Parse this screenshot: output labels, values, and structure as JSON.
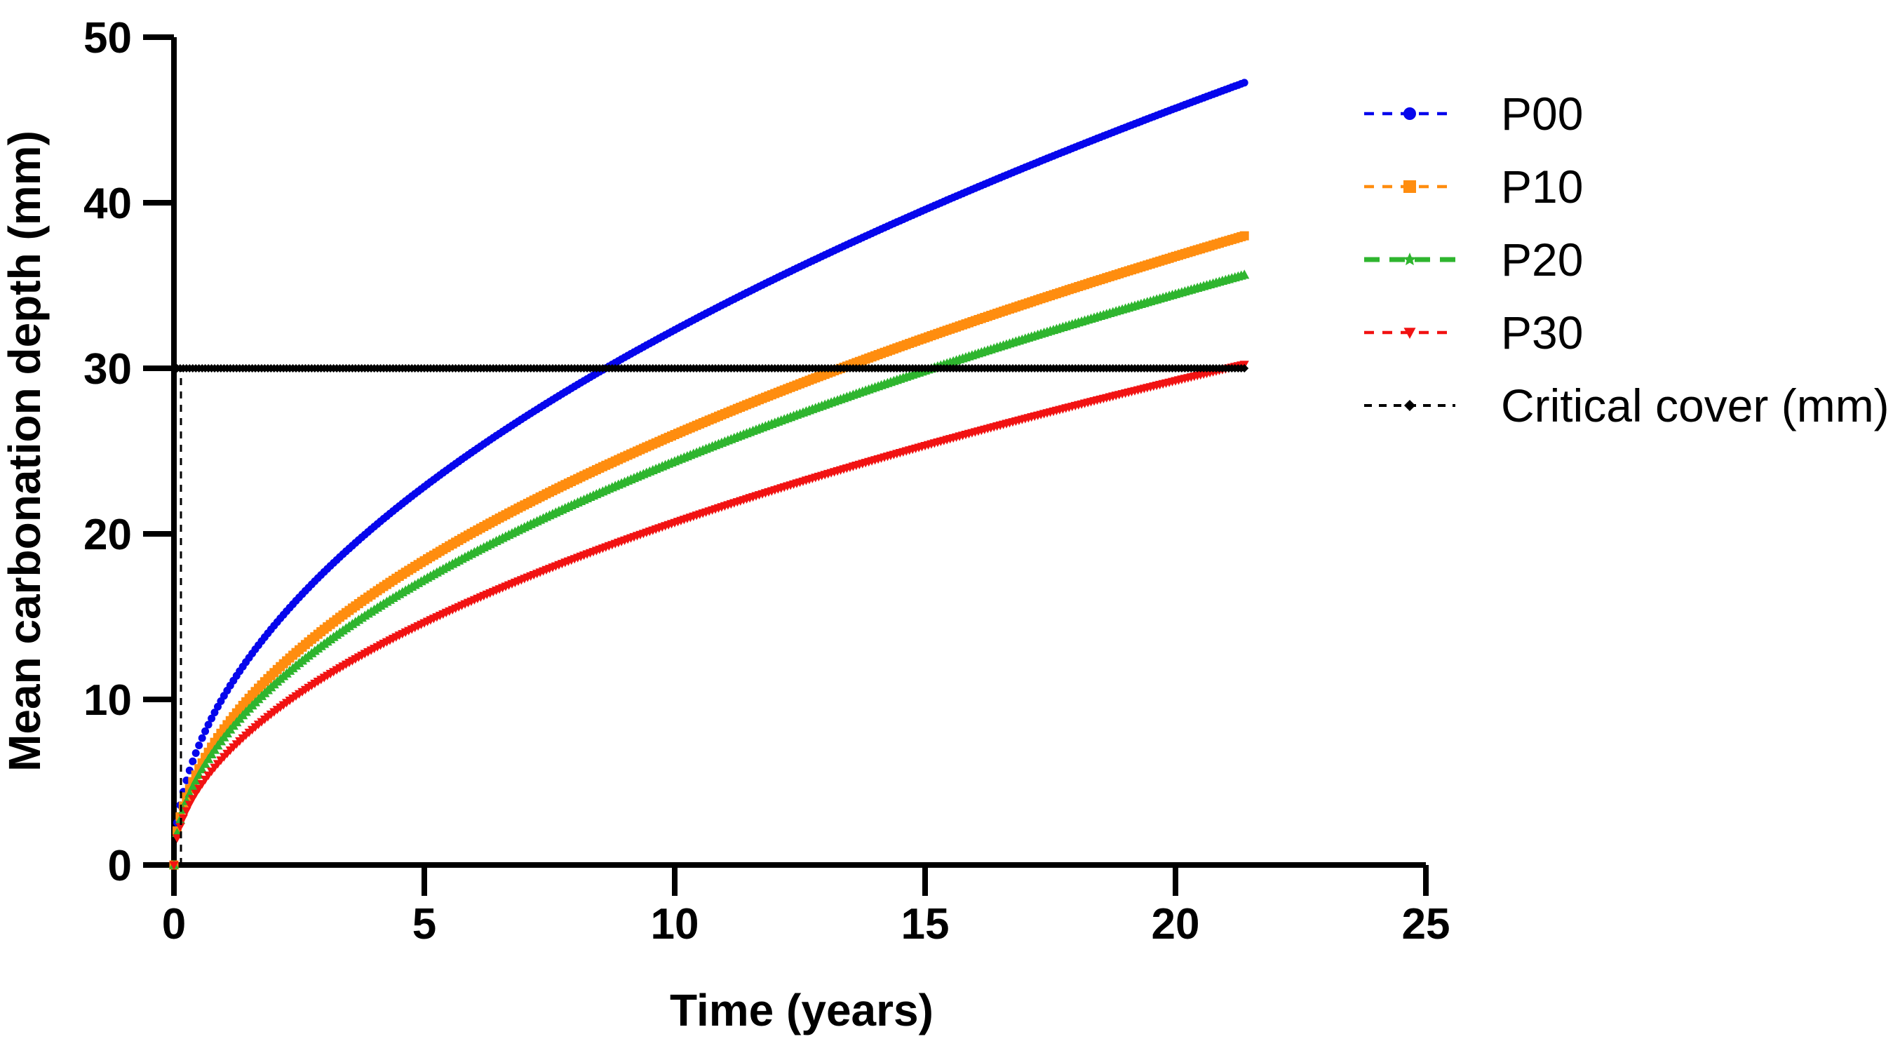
{
  "chart_data": {
    "type": "line",
    "title": "",
    "xlabel": "Time (years)",
    "ylabel": "Mean carbonation depth (mm)",
    "xlim": [
      0,
      25
    ],
    "ylim": [
      0,
      50
    ],
    "x_ticks": [
      0,
      5,
      10,
      15,
      20,
      25
    ],
    "y_ticks": [
      0,
      10,
      20,
      30,
      40,
      50
    ],
    "grid": false,
    "legend_position": "right",
    "axis_color": "#000000",
    "series": [
      {
        "name": "P00",
        "color": "#0606ec",
        "plot_marker": "circle",
        "legend_marker": "circle",
        "marker_size": 5.5,
        "legend_marker_size": 9,
        "legend_dash": "14 12",
        "legend_line_width": 4.5,
        "sqrt_coefficient": 10.22,
        "t_end": 21.4,
        "points": [
          [
            0,
            0
          ],
          [
            1,
            10.2
          ],
          [
            2,
            14.5
          ],
          [
            3,
            17.7
          ],
          [
            4,
            20.4
          ],
          [
            5,
            22.9
          ],
          [
            6,
            25.0
          ],
          [
            7,
            27.0
          ],
          [
            8,
            28.9
          ],
          [
            9,
            30.7
          ],
          [
            10,
            32.3
          ],
          [
            11,
            33.9
          ],
          [
            12,
            35.4
          ],
          [
            13,
            36.9
          ],
          [
            14,
            38.2
          ],
          [
            15,
            39.6
          ],
          [
            16,
            40.9
          ],
          [
            17,
            42.1
          ],
          [
            18,
            43.4
          ],
          [
            19,
            44.5
          ],
          [
            20,
            45.7
          ],
          [
            21,
            46.8
          ],
          [
            21.4,
            47.3
          ]
        ]
      },
      {
        "name": "P10",
        "color": "#ff8d0f",
        "plot_marker": "square",
        "legend_marker": "square",
        "marker_size": 6.5,
        "legend_marker_size": 9,
        "legend_dash": "14 12",
        "legend_line_width": 4.5,
        "sqrt_coefficient": 8.22,
        "t_end": 21.4,
        "points": [
          [
            0,
            0
          ],
          [
            1,
            8.2
          ],
          [
            2,
            11.6
          ],
          [
            3,
            14.2
          ],
          [
            4,
            16.4
          ],
          [
            5,
            18.4
          ],
          [
            6,
            20.1
          ],
          [
            7,
            21.7
          ],
          [
            8,
            23.2
          ],
          [
            9,
            24.7
          ],
          [
            10,
            26.0
          ],
          [
            11,
            27.3
          ],
          [
            12,
            28.5
          ],
          [
            13,
            29.6
          ],
          [
            14,
            30.8
          ],
          [
            15,
            31.8
          ],
          [
            16,
            32.9
          ],
          [
            17,
            33.9
          ],
          [
            18,
            34.9
          ],
          [
            19,
            35.8
          ],
          [
            20,
            36.8
          ],
          [
            21,
            37.7
          ],
          [
            21.4,
            38.0
          ]
        ]
      },
      {
        "name": "P20",
        "color": "#2eb52e",
        "plot_marker": "triangle-up",
        "legend_marker": "star",
        "marker_size": 7.5,
        "legend_marker_size": 10,
        "legend_dash": "22 14",
        "legend_line_width": 7,
        "sqrt_coefficient": 7.71,
        "t_end": 21.4,
        "points": [
          [
            0,
            0
          ],
          [
            1,
            7.7
          ],
          [
            2,
            10.9
          ],
          [
            3,
            13.4
          ],
          [
            4,
            15.4
          ],
          [
            5,
            17.2
          ],
          [
            6,
            18.9
          ],
          [
            7,
            20.4
          ],
          [
            8,
            21.8
          ],
          [
            9,
            23.1
          ],
          [
            10,
            24.4
          ],
          [
            11,
            25.6
          ],
          [
            12,
            26.7
          ],
          [
            13,
            27.8
          ],
          [
            14,
            28.8
          ],
          [
            15,
            29.9
          ],
          [
            16,
            30.8
          ],
          [
            17,
            31.8
          ],
          [
            18,
            32.7
          ],
          [
            19,
            33.6
          ],
          [
            20,
            34.5
          ],
          [
            21,
            35.3
          ],
          [
            21.4,
            35.7
          ]
        ]
      },
      {
        "name": "P30",
        "color": "#f11212",
        "plot_marker": "triangle-down",
        "legend_marker": "triangle-down",
        "marker_size": 7,
        "legend_marker_size": 9,
        "legend_dash": "14 12",
        "legend_line_width": 4.5,
        "sqrt_coefficient": 6.54,
        "t_end": 21.4,
        "points": [
          [
            0,
            0
          ],
          [
            1,
            6.5
          ],
          [
            2,
            9.2
          ],
          [
            3,
            11.3
          ],
          [
            4,
            13.1
          ],
          [
            5,
            14.6
          ],
          [
            6,
            16.0
          ],
          [
            7,
            17.3
          ],
          [
            8,
            18.5
          ],
          [
            9,
            19.6
          ],
          [
            10,
            20.7
          ],
          [
            11,
            21.7
          ],
          [
            12,
            22.7
          ],
          [
            13,
            23.6
          ],
          [
            14,
            24.5
          ],
          [
            15,
            25.3
          ],
          [
            16,
            26.2
          ],
          [
            17,
            27.0
          ],
          [
            18,
            27.7
          ],
          [
            19,
            28.5
          ],
          [
            20,
            29.2
          ],
          [
            21,
            30.0
          ],
          [
            21.4,
            30.3
          ]
        ]
      },
      {
        "name": "Critical cover (mm)",
        "color": "#000000",
        "plot_marker": "diamond",
        "legend_marker": "diamond",
        "marker_size": 6,
        "legend_marker_size": 8,
        "legend_dash": "11 10",
        "legend_line_width": 4,
        "constant_value": 30,
        "t_start": 0,
        "t_end": 21.4,
        "drop_line_t": 0.14,
        "points": [
          [
            0,
            30
          ],
          [
            21.4,
            30
          ]
        ]
      }
    ]
  }
}
